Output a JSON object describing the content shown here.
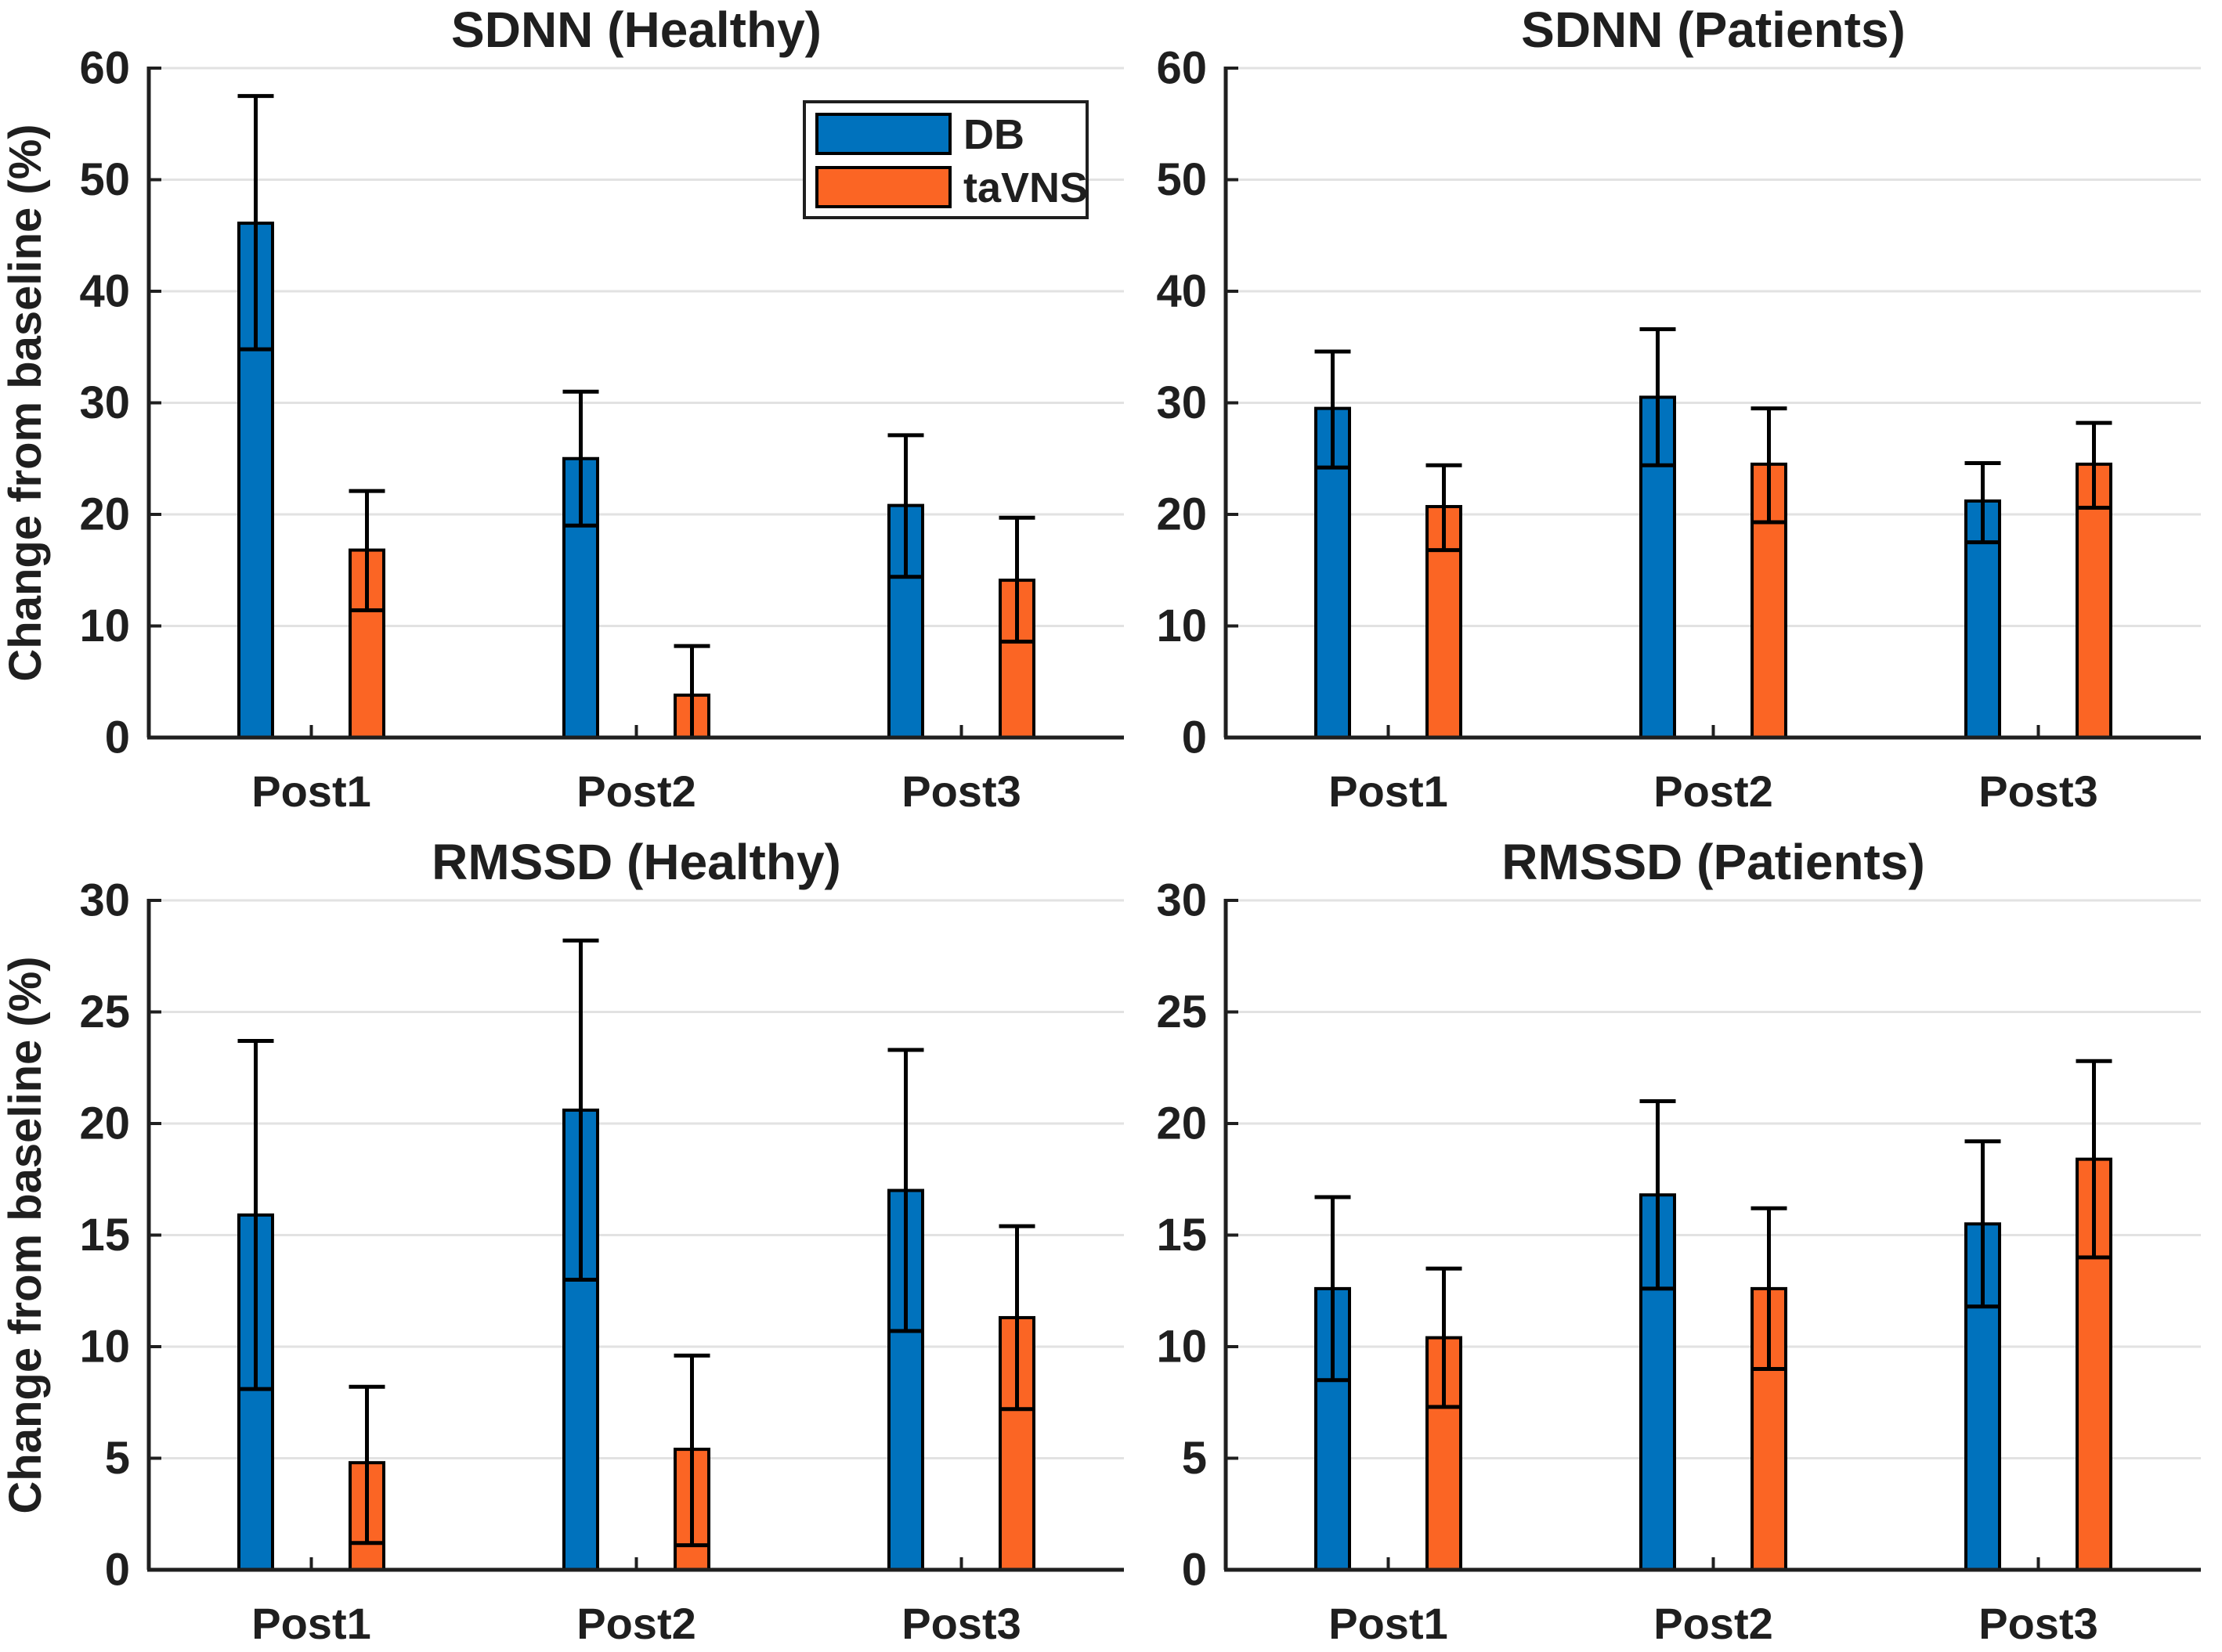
{
  "figure": {
    "background": "#ffffff",
    "text_color": "#1f1f1f",
    "axis_color": "#1f1f1f",
    "grid_color": "#e2e2e2",
    "bar_edge_color": "#000000",
    "error_bar_color": "#000000",
    "series_colors": {
      "db": "#0072BD",
      "tavns": "#FB6524"
    },
    "ylabel": "Change from baseline (%)",
    "legend": {
      "entries": [
        {
          "label": "DB",
          "color_key": "db"
        },
        {
          "label": "taVNS",
          "color_key": "tavns"
        }
      ]
    }
  },
  "chart_data": [
    {
      "id": "sdnn-healthy",
      "type": "bar",
      "title": "SDNN (Healthy)",
      "categories": [
        "Post1",
        "Post2",
        "Post3"
      ],
      "ylabel": "Change from baseline (%)",
      "show_ylabel": true,
      "show_legend": true,
      "legend_position": "top-right-inside",
      "grid": true,
      "ylim": [
        0,
        60
      ],
      "yticks": [
        0,
        10,
        20,
        30,
        40,
        50,
        60
      ],
      "series": [
        {
          "name": "DB",
          "color_key": "db",
          "values": [
            46.1,
            25.0,
            20.8
          ],
          "err_lo": [
            34.8,
            19.0,
            14.4
          ],
          "err_hi": [
            57.5,
            31.0,
            27.1
          ]
        },
        {
          "name": "taVNS",
          "color_key": "tavns",
          "values": [
            16.8,
            3.8,
            14.1
          ],
          "err_lo": [
            11.4,
            0.0,
            8.6
          ],
          "err_hi": [
            22.1,
            8.2,
            19.7
          ]
        }
      ]
    },
    {
      "id": "sdnn-patients",
      "type": "bar",
      "title": "SDNN (Patients)",
      "categories": [
        "Post1",
        "Post2",
        "Post3"
      ],
      "ylabel": "",
      "show_ylabel": false,
      "show_legend": false,
      "grid": true,
      "ylim": [
        0,
        60
      ],
      "yticks": [
        0,
        10,
        20,
        30,
        40,
        50,
        60
      ],
      "series": [
        {
          "name": "DB",
          "color_key": "db",
          "values": [
            29.5,
            30.5,
            21.2
          ],
          "err_lo": [
            24.2,
            24.4,
            17.5
          ],
          "err_hi": [
            34.6,
            36.6,
            24.6
          ]
        },
        {
          "name": "taVNS",
          "color_key": "tavns",
          "values": [
            20.7,
            24.5,
            24.5
          ],
          "err_lo": [
            16.8,
            19.3,
            20.6
          ],
          "err_hi": [
            24.4,
            29.5,
            28.2
          ]
        }
      ]
    },
    {
      "id": "rmssd-healthy",
      "type": "bar",
      "title": "RMSSD (Healthy)",
      "categories": [
        "Post1",
        "Post2",
        "Post3"
      ],
      "ylabel": "Change from baseline (%)",
      "show_ylabel": true,
      "show_legend": false,
      "grid": true,
      "ylim": [
        0,
        30
      ],
      "yticks": [
        0,
        5,
        10,
        15,
        20,
        25,
        30
      ],
      "series": [
        {
          "name": "DB",
          "color_key": "db",
          "values": [
            15.9,
            20.6,
            17.0
          ],
          "err_lo": [
            8.1,
            13.0,
            10.7
          ],
          "err_hi": [
            23.7,
            28.2,
            23.3
          ]
        },
        {
          "name": "taVNS",
          "color_key": "tavns",
          "values": [
            4.8,
            5.4,
            11.3
          ],
          "err_lo": [
            1.2,
            1.1,
            7.2
          ],
          "err_hi": [
            8.2,
            9.6,
            15.4
          ]
        }
      ]
    },
    {
      "id": "rmssd-patients",
      "type": "bar",
      "title": "RMSSD (Patients)",
      "categories": [
        "Post1",
        "Post2",
        "Post3"
      ],
      "ylabel": "",
      "show_ylabel": false,
      "show_legend": false,
      "grid": true,
      "ylim": [
        0,
        30
      ],
      "yticks": [
        0,
        5,
        10,
        15,
        20,
        25,
        30
      ],
      "series": [
        {
          "name": "DB",
          "color_key": "db",
          "values": [
            12.6,
            16.8,
            15.5
          ],
          "err_lo": [
            8.5,
            12.6,
            11.8
          ],
          "err_hi": [
            16.7,
            21.0,
            19.2
          ]
        },
        {
          "name": "taVNS",
          "color_key": "tavns",
          "values": [
            10.4,
            12.6,
            18.4
          ],
          "err_lo": [
            7.3,
            9.0,
            14.0
          ],
          "err_hi": [
            13.5,
            16.2,
            22.8
          ]
        }
      ]
    }
  ]
}
